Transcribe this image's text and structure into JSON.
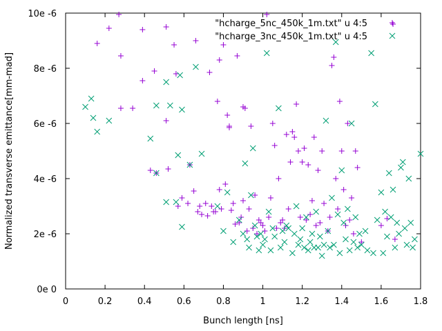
{
  "chart_data": {
    "type": "scatter",
    "xlabel": "Bunch length [ns]",
    "ylabel": "Normalized transverse emittance[mm-mad]",
    "xlim": [
      0,
      1.8
    ],
    "ylim": [
      0,
      10
    ],
    "x_ticks": [
      0,
      0.2,
      0.4,
      0.6,
      0.8,
      1,
      1.2,
      1.4,
      1.6,
      1.8
    ],
    "x_tick_labels": [
      "0",
      "0.2",
      "0.4",
      "0.6",
      "0.8",
      "1",
      "1.2",
      "1.4",
      "1.6",
      "1.8"
    ],
    "y_ticks": [
      0,
      2,
      4,
      6,
      8,
      10
    ],
    "y_tick_labels": [
      "0e 0",
      "2e -6",
      "4e -6",
      "6e -6",
      "8e -6",
      "10e -6"
    ],
    "grid": false,
    "legend_position": "top-right",
    "series": [
      {
        "name": "\"hcharge_5nc_450k_1m.txt\" u 4:5",
        "marker": "plus",
        "color": "#9400d3",
        "points": [
          [
            0.16,
            8.9
          ],
          [
            0.22,
            9.45
          ],
          [
            0.27,
            9.95
          ],
          [
            0.28,
            8.45
          ],
          [
            0.28,
            6.55
          ],
          [
            0.34,
            6.55
          ],
          [
            0.39,
            9.4
          ],
          [
            0.39,
            7.55
          ],
          [
            0.43,
            4.3
          ],
          [
            0.45,
            7.9
          ],
          [
            0.46,
            4.2
          ],
          [
            0.51,
            9.5
          ],
          [
            0.51,
            6.1
          ],
          [
            0.52,
            4.35
          ],
          [
            0.55,
            8.85
          ],
          [
            0.56,
            7.8
          ],
          [
            0.57,
            3.0
          ],
          [
            0.59,
            3.3
          ],
          [
            0.62,
            3.1
          ],
          [
            0.63,
            4.5
          ],
          [
            0.65,
            3.55
          ],
          [
            0.66,
            9.0
          ],
          [
            0.67,
            2.8
          ],
          [
            0.68,
            3.0
          ],
          [
            0.69,
            2.7
          ],
          [
            0.71,
            3.1
          ],
          [
            0.72,
            2.65
          ],
          [
            0.73,
            7.85
          ],
          [
            0.74,
            3.0
          ],
          [
            0.75,
            2.8
          ],
          [
            0.76,
            2.8
          ],
          [
            0.77,
            6.8
          ],
          [
            0.78,
            8.3
          ],
          [
            0.78,
            3.6
          ],
          [
            0.79,
            2.9
          ],
          [
            0.8,
            8.85
          ],
          [
            0.81,
            3.8
          ],
          [
            0.82,
            6.3
          ],
          [
            0.83,
            5.85
          ],
          [
            0.83,
            5.9
          ],
          [
            0.84,
            2.85
          ],
          [
            0.85,
            3.1
          ],
          [
            0.86,
            2.35
          ],
          [
            0.87,
            8.45
          ],
          [
            0.88,
            2.4
          ],
          [
            0.89,
            2.6
          ],
          [
            0.9,
            6.6
          ],
          [
            0.9,
            3.2
          ],
          [
            0.91,
            6.55
          ],
          [
            0.92,
            2.1
          ],
          [
            0.93,
            2.9
          ],
          [
            0.94,
            5.9
          ],
          [
            0.95,
            2.2
          ],
          [
            0.96,
            3.4
          ],
          [
            0.97,
            2.0
          ],
          [
            0.98,
            2.5
          ],
          [
            0.99,
            2.4
          ],
          [
            1.0,
            2.3
          ],
          [
            1.01,
            2.1
          ],
          [
            1.02,
            9.95
          ],
          [
            1.03,
            2.6
          ],
          [
            1.04,
            3.3
          ],
          [
            1.05,
            6.0
          ],
          [
            1.06,
            5.2
          ],
          [
            1.07,
            2.2
          ],
          [
            1.08,
            4.0
          ],
          [
            1.09,
            2.4
          ],
          [
            1.1,
            2.5
          ],
          [
            1.11,
            2.2
          ],
          [
            1.12,
            5.6
          ],
          [
            1.13,
            2.9
          ],
          [
            1.14,
            4.6
          ],
          [
            1.15,
            5.7
          ],
          [
            1.16,
            5.5
          ],
          [
            1.17,
            6.7
          ],
          [
            1.18,
            5.0
          ],
          [
            1.19,
            2.6
          ],
          [
            1.2,
            4.6
          ],
          [
            1.21,
            5.1
          ],
          [
            1.22,
            2.5
          ],
          [
            1.23,
            4.5
          ],
          [
            1.24,
            2.7
          ],
          [
            1.25,
            3.2
          ],
          [
            1.26,
            5.5
          ],
          [
            1.27,
            2.3
          ],
          [
            1.28,
            4.3
          ],
          [
            1.29,
            2.4
          ],
          [
            1.3,
            5.0
          ],
          [
            1.31,
            3.1
          ],
          [
            1.33,
            2.1
          ],
          [
            1.34,
            2.6
          ],
          [
            1.35,
            8.1
          ],
          [
            1.36,
            8.4
          ],
          [
            1.37,
            4.0
          ],
          [
            1.38,
            2.9
          ],
          [
            1.39,
            6.8
          ],
          [
            1.4,
            5.0
          ],
          [
            1.41,
            3.6
          ],
          [
            1.42,
            2.3
          ],
          [
            1.43,
            6.0
          ],
          [
            1.44,
            2.5
          ],
          [
            1.45,
            3.3
          ],
          [
            1.46,
            2.0
          ],
          [
            1.47,
            5.0
          ],
          [
            1.48,
            4.4
          ],
          [
            1.5,
            1.7
          ],
          [
            1.6,
            2.3
          ],
          [
            1.63,
            2.55
          ],
          [
            1.66,
            9.6
          ],
          [
            1.67,
            1.8
          ]
        ]
      },
      {
        "name": "\"hcharge_3nc_450k_1m.txt\" u 4:5",
        "marker": "cross",
        "color": "#009e73",
        "points": [
          [
            0.1,
            6.6
          ],
          [
            0.13,
            6.9
          ],
          [
            0.14,
            6.2
          ],
          [
            0.16,
            5.7
          ],
          [
            0.22,
            6.1
          ],
          [
            0.43,
            5.45
          ],
          [
            0.46,
            6.65
          ],
          [
            0.46,
            4.2
          ],
          [
            0.51,
            7.5
          ],
          [
            0.51,
            3.15
          ],
          [
            0.53,
            6.65
          ],
          [
            0.56,
            3.15
          ],
          [
            0.57,
            4.85
          ],
          [
            0.58,
            7.75
          ],
          [
            0.59,
            2.25
          ],
          [
            0.59,
            6.5
          ],
          [
            0.63,
            4.5
          ],
          [
            0.66,
            8.05
          ],
          [
            0.69,
            4.9
          ],
          [
            0.77,
            3.0
          ],
          [
            0.8,
            2.1
          ],
          [
            0.82,
            3.5
          ],
          [
            0.85,
            1.7
          ],
          [
            0.88,
            2.5
          ],
          [
            0.9,
            2.0
          ],
          [
            0.91,
            4.55
          ],
          [
            0.92,
            1.8
          ],
          [
            0.93,
            1.5
          ],
          [
            0.94,
            3.4
          ],
          [
            0.95,
            5.1
          ],
          [
            0.96,
            2.3
          ],
          [
            0.97,
            1.9
          ],
          [
            0.98,
            1.4
          ],
          [
            0.99,
            2.0
          ],
          [
            1.0,
            1.6
          ],
          [
            1.01,
            1.8
          ],
          [
            1.02,
            8.55
          ],
          [
            1.03,
            2.8
          ],
          [
            1.04,
            1.4
          ],
          [
            1.05,
            2.2
          ],
          [
            1.06,
            1.9
          ],
          [
            1.08,
            6.55
          ],
          [
            1.09,
            1.5
          ],
          [
            1.1,
            2.1
          ],
          [
            1.11,
            1.7
          ],
          [
            1.12,
            2.3
          ],
          [
            1.13,
            2.2
          ],
          [
            1.15,
            1.3
          ],
          [
            1.16,
            2.0
          ],
          [
            1.17,
            3.0
          ],
          [
            1.18,
            1.6
          ],
          [
            1.19,
            1.8
          ],
          [
            1.2,
            2.2
          ],
          [
            1.21,
            1.5
          ],
          [
            1.22,
            2.6
          ],
          [
            1.23,
            1.4
          ],
          [
            1.24,
            1.7
          ],
          [
            1.25,
            2.0
          ],
          [
            1.26,
            1.5
          ],
          [
            1.27,
            2.8
          ],
          [
            1.28,
            1.5
          ],
          [
            1.29,
            1.9
          ],
          [
            1.3,
            1.2
          ],
          [
            1.31,
            1.6
          ],
          [
            1.32,
            6.1
          ],
          [
            1.33,
            2.1
          ],
          [
            1.34,
            1.5
          ],
          [
            1.35,
            3.3
          ],
          [
            1.36,
            1.6
          ],
          [
            1.37,
            8.95
          ],
          [
            1.38,
            2.7
          ],
          [
            1.39,
            1.3
          ],
          [
            1.4,
            4.3
          ],
          [
            1.41,
            2.4
          ],
          [
            1.42,
            1.8
          ],
          [
            1.43,
            2.9
          ],
          [
            1.44,
            1.4
          ],
          [
            1.45,
            6.0
          ],
          [
            1.46,
            1.7
          ],
          [
            1.47,
            2.6
          ],
          [
            1.48,
            1.5
          ],
          [
            1.49,
            2.0
          ],
          [
            1.5,
            1.6
          ],
          [
            1.52,
            2.1
          ],
          [
            1.53,
            1.4
          ],
          [
            1.55,
            8.55
          ],
          [
            1.56,
            1.3
          ],
          [
            1.57,
            6.7
          ],
          [
            1.58,
            2.5
          ],
          [
            1.6,
            3.5
          ],
          [
            1.61,
            1.3
          ],
          [
            1.62,
            2.8
          ],
          [
            1.63,
            1.9
          ],
          [
            1.64,
            4.2
          ],
          [
            1.65,
            2.6
          ],
          [
            1.66,
            3.6
          ],
          [
            1.67,
            1.5
          ],
          [
            1.68,
            2.4
          ],
          [
            1.69,
            2.0
          ],
          [
            1.7,
            4.4
          ],
          [
            1.71,
            4.6
          ],
          [
            1.72,
            2.2
          ],
          [
            1.73,
            1.6
          ],
          [
            1.74,
            4.0
          ],
          [
            1.75,
            2.4
          ],
          [
            1.76,
            1.5
          ],
          [
            1.77,
            1.8
          ],
          [
            1.8,
            4.9
          ]
        ]
      }
    ]
  }
}
